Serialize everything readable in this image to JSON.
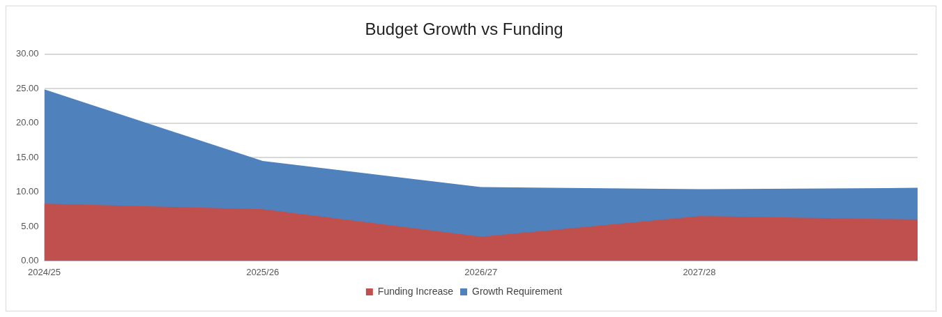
{
  "chart_data": {
    "type": "area",
    "title": "Budget Growth vs Funding",
    "categories": [
      "2024/25",
      "2025/26",
      "2026/27",
      "2027/28",
      null
    ],
    "series": [
      {
        "name": "Growth Requirement",
        "color": "#4f81bd",
        "values": [
          24.9,
          14.5,
          10.7,
          10.4,
          10.6
        ]
      },
      {
        "name": "Funding Increase",
        "color": "#c0504d",
        "values": [
          8.3,
          7.5,
          3.5,
          6.5,
          6.0
        ]
      }
    ],
    "ylim": [
      0,
      30
    ],
    "yticks": [
      {
        "value": 0,
        "label": "0.00"
      },
      {
        "value": 5,
        "label": "5.00"
      },
      {
        "value": 10,
        "label": "10.00"
      },
      {
        "value": 15,
        "label": "15.00"
      },
      {
        "value": 20,
        "label": "20.00"
      },
      {
        "value": 25,
        "label": "25.00"
      },
      {
        "value": 30,
        "label": "30.00"
      }
    ],
    "grid": "y",
    "legend": "bottom"
  }
}
